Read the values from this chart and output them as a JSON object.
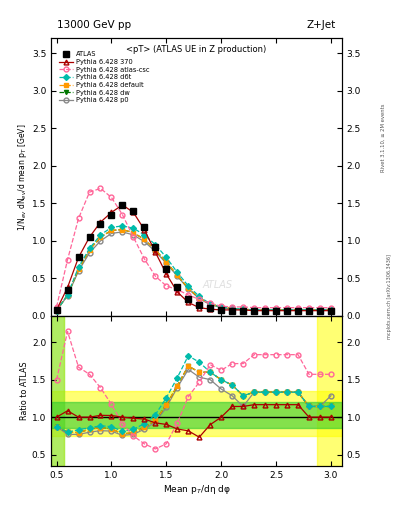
{
  "title_top": "13000 GeV pp",
  "title_right": "Z+Jet",
  "panel_title": "<pT> (ATLAS UE in Z production)",
  "ylabel_main": "1/N$_{ev}$ dN$_{ev}$/d mean p$_{T}$ [GeV]",
  "ylabel_ratio": "Ratio to ATLAS",
  "xlabel": "Mean p$_{T}$/dη dφ",
  "rivet_label": "Rivet 3.1.10, ≥ 2M events",
  "mcplots_label": "mcplots.cern.ch [arXiv:1306.3436]",
  "ylim_main": [
    0,
    3.7
  ],
  "ylim_ratio": [
    0.35,
    2.35
  ],
  "xlim": [
    0.45,
    3.1
  ],
  "atlas_x": [
    0.5,
    0.6,
    0.7,
    0.8,
    0.9,
    1.0,
    1.1,
    1.2,
    1.3,
    1.4,
    1.5,
    1.6,
    1.7,
    1.8,
    1.9,
    2.0,
    2.1,
    2.2,
    2.3,
    2.4,
    2.5,
    2.6,
    2.7,
    2.8,
    2.9,
    3.0
  ],
  "atlas_y": [
    0.08,
    0.35,
    0.78,
    1.05,
    1.22,
    1.35,
    1.48,
    1.4,
    1.18,
    0.92,
    0.62,
    0.38,
    0.22,
    0.15,
    0.1,
    0.08,
    0.07,
    0.07,
    0.06,
    0.06,
    0.06,
    0.06,
    0.06,
    0.07,
    0.07,
    0.07
  ],
  "py370_x": [
    0.5,
    0.6,
    0.7,
    0.8,
    0.9,
    1.0,
    1.1,
    1.2,
    1.3,
    1.4,
    1.5,
    1.6,
    1.7,
    1.8,
    1.9,
    2.0,
    2.1,
    2.2,
    2.3,
    2.4,
    2.5,
    2.6,
    2.7,
    2.8,
    2.9,
    3.0
  ],
  "py370_y": [
    0.08,
    0.38,
    0.78,
    1.05,
    1.25,
    1.38,
    1.48,
    1.38,
    1.15,
    0.85,
    0.56,
    0.32,
    0.18,
    0.11,
    0.09,
    0.08,
    0.08,
    0.08,
    0.07,
    0.07,
    0.07,
    0.07,
    0.07,
    0.07,
    0.07,
    0.07
  ],
  "py_csc_x": [
    0.5,
    0.6,
    0.7,
    0.8,
    0.9,
    1.0,
    1.1,
    1.2,
    1.3,
    1.4,
    1.5,
    1.6,
    1.7,
    1.8,
    1.9,
    2.0,
    2.1,
    2.2,
    2.3,
    2.4,
    2.5,
    2.6,
    2.7,
    2.8,
    2.9,
    3.0
  ],
  "py_csc_y": [
    0.12,
    0.75,
    1.3,
    1.65,
    1.7,
    1.58,
    1.35,
    1.05,
    0.76,
    0.53,
    0.4,
    0.35,
    0.28,
    0.22,
    0.17,
    0.13,
    0.12,
    0.12,
    0.11,
    0.11,
    0.11,
    0.11,
    0.11,
    0.11,
    0.11,
    0.11
  ],
  "py_d6t_x": [
    0.5,
    0.6,
    0.7,
    0.8,
    0.9,
    1.0,
    1.1,
    1.2,
    1.3,
    1.4,
    1.5,
    1.6,
    1.7,
    1.8,
    1.9,
    2.0,
    2.1,
    2.2,
    2.3,
    2.4,
    2.5,
    2.6,
    2.7,
    2.8,
    2.9,
    3.0
  ],
  "py_d6t_y": [
    0.07,
    0.28,
    0.65,
    0.9,
    1.08,
    1.18,
    1.2,
    1.17,
    1.08,
    0.95,
    0.78,
    0.58,
    0.4,
    0.26,
    0.16,
    0.12,
    0.1,
    0.09,
    0.08,
    0.08,
    0.08,
    0.08,
    0.08,
    0.08,
    0.08,
    0.08
  ],
  "py_def_x": [
    0.5,
    0.6,
    0.7,
    0.8,
    0.9,
    1.0,
    1.1,
    1.2,
    1.3,
    1.4,
    1.5,
    1.6,
    1.7,
    1.8,
    1.9,
    2.0,
    2.1,
    2.2,
    2.3,
    2.4,
    2.5,
    2.6,
    2.7,
    2.8,
    2.9,
    3.0
  ],
  "py_def_y": [
    0.07,
    0.28,
    0.62,
    0.88,
    1.05,
    1.14,
    1.15,
    1.11,
    1.02,
    0.88,
    0.72,
    0.54,
    0.37,
    0.24,
    0.16,
    0.12,
    0.1,
    0.09,
    0.08,
    0.08,
    0.08,
    0.08,
    0.08,
    0.08,
    0.08,
    0.08
  ],
  "py_dw_x": [
    0.5,
    0.6,
    0.7,
    0.8,
    0.9,
    1.0,
    1.1,
    1.2,
    1.3,
    1.4,
    1.5,
    1.6,
    1.7,
    1.8,
    1.9,
    2.0,
    2.1,
    2.2,
    2.3,
    2.4,
    2.5,
    2.6,
    2.7,
    2.8,
    2.9,
    3.0
  ],
  "py_dw_y": [
    0.07,
    0.28,
    0.62,
    0.88,
    1.05,
    1.14,
    1.15,
    1.11,
    1.02,
    0.88,
    0.72,
    0.54,
    0.37,
    0.24,
    0.16,
    0.12,
    0.1,
    0.09,
    0.08,
    0.08,
    0.08,
    0.08,
    0.08,
    0.08,
    0.08,
    0.08
  ],
  "py_p0_x": [
    0.5,
    0.6,
    0.7,
    0.8,
    0.9,
    1.0,
    1.1,
    1.2,
    1.3,
    1.4,
    1.5,
    1.6,
    1.7,
    1.8,
    1.9,
    2.0,
    2.1,
    2.2,
    2.3,
    2.4,
    2.5,
    2.6,
    2.7,
    2.8,
    2.9,
    3.0
  ],
  "py_p0_y": [
    0.07,
    0.27,
    0.6,
    0.84,
    1.0,
    1.1,
    1.12,
    1.08,
    0.99,
    0.86,
    0.7,
    0.53,
    0.36,
    0.23,
    0.15,
    0.11,
    0.09,
    0.08,
    0.08,
    0.08,
    0.08,
    0.08,
    0.08,
    0.08,
    0.08,
    0.09
  ],
  "color_atlas": "#000000",
  "color_370": "#aa0000",
  "color_csc": "#ff6699",
  "color_d6t": "#00bbaa",
  "color_def": "#ff9900",
  "color_dw": "#007700",
  "color_p0": "#888888",
  "band_yellow_lo": 0.75,
  "band_yellow_hi": 1.35,
  "band_green_lo": 0.85,
  "band_green_hi": 1.2,
  "left_band_x0": 0.45,
  "left_band_x1": 0.57,
  "right_band_x0": 2.87,
  "right_band_x1": 3.1
}
